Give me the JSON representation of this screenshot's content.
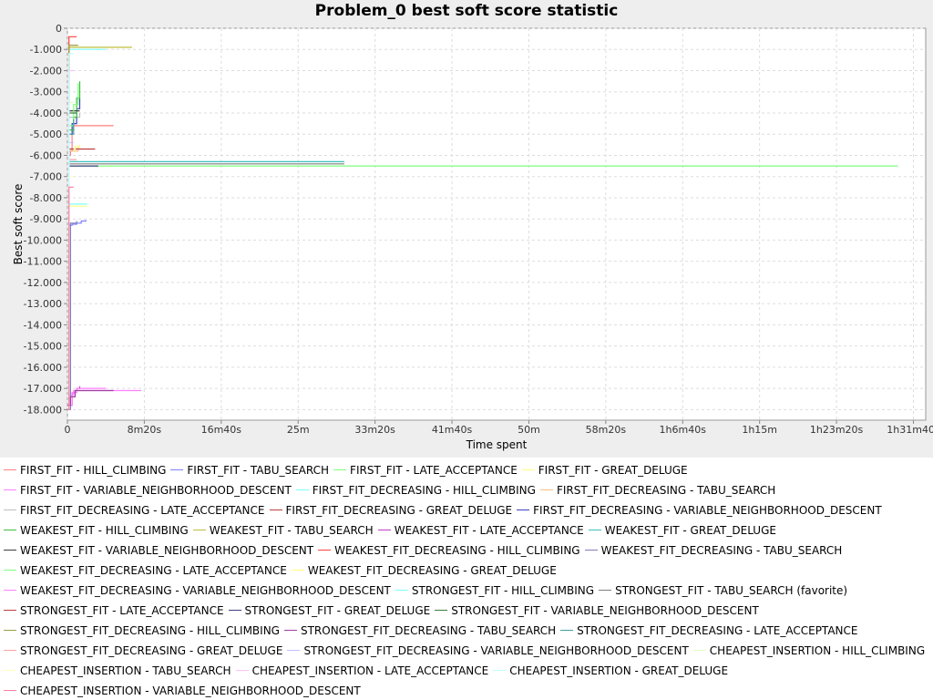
{
  "chart_data": {
    "type": "line",
    "title": "Problem_0 best soft score statistic",
    "xlabel": "Time spent",
    "ylabel": "Best soft score",
    "xlim_ms": [
      0,
      5580000
    ],
    "ylim": [
      -18500,
      0
    ],
    "grid": true,
    "legend_placement": "bottom",
    "x_ticks": [
      {
        "ms": 0,
        "label": "0"
      },
      {
        "ms": 500000,
        "label": "8m20s"
      },
      {
        "ms": 1000000,
        "label": "16m40s"
      },
      {
        "ms": 1500000,
        "label": "25m"
      },
      {
        "ms": 2000000,
        "label": "33m20s"
      },
      {
        "ms": 2500000,
        "label": "41m40s"
      },
      {
        "ms": 3000000,
        "label": "50m"
      },
      {
        "ms": 3500000,
        "label": "58m20s"
      },
      {
        "ms": 4000000,
        "label": "1h6m40s"
      },
      {
        "ms": 4500000,
        "label": "1h15m"
      },
      {
        "ms": 5000000,
        "label": "1h23m20s"
      },
      {
        "ms": 5500000,
        "label": "1h31m40s"
      }
    ],
    "y_ticks": [
      {
        "v": 0,
        "label": "0"
      },
      {
        "v": -1000,
        "label": "-1.000"
      },
      {
        "v": -2000,
        "label": "-2.000"
      },
      {
        "v": -3000,
        "label": "-3.000"
      },
      {
        "v": -4000,
        "label": "-4.000"
      },
      {
        "v": -5000,
        "label": "-5.000"
      },
      {
        "v": -6000,
        "label": "-6.000"
      },
      {
        "v": -7000,
        "label": "-7.000"
      },
      {
        "v": -8000,
        "label": "-8.000"
      },
      {
        "v": -9000,
        "label": "-9.000"
      },
      {
        "v": -10000,
        "label": "-10.000"
      },
      {
        "v": -11000,
        "label": "-11.000"
      },
      {
        "v": -12000,
        "label": "-12.000"
      },
      {
        "v": -13000,
        "label": "-13.000"
      },
      {
        "v": -14000,
        "label": "-14.000"
      },
      {
        "v": -15000,
        "label": "-15.000"
      },
      {
        "v": -16000,
        "label": "-16.000"
      },
      {
        "v": -17000,
        "label": "-17.000"
      },
      {
        "v": -18000,
        "label": "-18.000"
      }
    ],
    "series": [
      {
        "name": "FIRST_FIT - HILL_CLIMBING",
        "color": "#ff7f7f",
        "points": [
          [
            0,
            -18000
          ],
          [
            10000,
            -6000
          ],
          [
            20000,
            -5800
          ],
          [
            30000,
            -4600
          ],
          [
            300000,
            -4600
          ]
        ]
      },
      {
        "name": "FIRST_FIT - TABU_SEARCH",
        "color": "#7f7fff",
        "points": [
          [
            0,
            -18000
          ],
          [
            10000,
            -9300
          ],
          [
            30000,
            -9250
          ],
          [
            60000,
            -9200
          ],
          [
            90000,
            -9100
          ],
          [
            120000,
            -9050
          ]
        ]
      },
      {
        "name": "FIRST_FIT - LATE_ACCEPTANCE",
        "color": "#7fff7f",
        "points": [
          [
            0,
            -18000
          ],
          [
            10000,
            -6500
          ],
          [
            50000,
            -6500
          ],
          [
            5400000,
            -6500
          ]
        ]
      },
      {
        "name": "FIRST_FIT - GREAT_DELUGE",
        "color": "#ffff7f",
        "points": [
          [
            0,
            -18000
          ],
          [
            10000,
            -8400
          ],
          [
            130000,
            -8400
          ]
        ]
      },
      {
        "name": "FIRST_FIT - VARIABLE_NEIGHBORHOOD_DESCENT",
        "color": "#ff7fff",
        "points": [
          [
            0,
            -17800
          ],
          [
            20000,
            -17300
          ],
          [
            40000,
            -17100
          ],
          [
            160000,
            -17100
          ],
          [
            480000,
            -17100
          ]
        ]
      },
      {
        "name": "FIRST_FIT_DECREASING - HILL_CLIMBING",
        "color": "#7fffff",
        "points": [
          [
            0,
            -18000
          ],
          [
            10000,
            -1000
          ],
          [
            250000,
            -1000
          ]
        ]
      },
      {
        "name": "FIRST_FIT_DECREASING - TABU_SEARCH",
        "color": "#ffbf7f",
        "points": [
          [
            0,
            -18000
          ],
          [
            10000,
            -5800
          ],
          [
            60000,
            -5800
          ],
          [
            70000,
            -5600
          ]
        ]
      },
      {
        "name": "FIRST_FIT_DECREASING - LATE_ACCEPTANCE",
        "color": "#bfbfbf",
        "points": [
          [
            0,
            -18000
          ],
          [
            10000,
            -4200
          ],
          [
            80000,
            -4000
          ]
        ]
      },
      {
        "name": "FIRST_FIT_DECREASING - GREAT_DELUGE",
        "color": "#bf3f3f",
        "points": [
          [
            0,
            -18000
          ],
          [
            10000,
            -5700
          ],
          [
            180000,
            -5700
          ]
        ]
      },
      {
        "name": "FIRST_FIT_DECREASING - VARIABLE_NEIGHBORHOOD_DESCENT",
        "color": "#3f3fbf",
        "points": [
          [
            0,
            -18000
          ],
          [
            10000,
            -5000
          ],
          [
            30000,
            -4500
          ],
          [
            60000,
            -3800
          ],
          [
            80000,
            -3300
          ]
        ]
      },
      {
        "name": "WEAKEST_FIT - HILL_CLIMBING",
        "color": "#3fbf3f",
        "points": [
          [
            0,
            -18000
          ],
          [
            10000,
            -4800
          ],
          [
            40000,
            -4200
          ],
          [
            60000,
            -3300
          ],
          [
            80000,
            -2500
          ]
        ]
      },
      {
        "name": "WEAKEST_FIT - TABU_SEARCH",
        "color": "#bfbf3f",
        "points": [
          [
            0,
            -18000
          ],
          [
            10000,
            -900
          ],
          [
            420000,
            -900
          ]
        ]
      },
      {
        "name": "WEAKEST_FIT - LATE_ACCEPTANCE",
        "color": "#bf3fbf",
        "points": [
          [
            0,
            -17800
          ],
          [
            30000,
            -17200
          ],
          [
            60000,
            -17000
          ],
          [
            80000,
            -16900
          ]
        ]
      },
      {
        "name": "WEAKEST_FIT - GREAT_DELUGE",
        "color": "#3fbfbf",
        "points": [
          [
            0,
            -18000
          ],
          [
            10000,
            -6300
          ],
          [
            1800000,
            -6300
          ]
        ]
      },
      {
        "name": "WEAKEST_FIT - VARIABLE_NEIGHBORHOOD_DESCENT",
        "color": "#3f3f3f",
        "points": [
          [
            0,
            -18000
          ],
          [
            10000,
            -3900
          ],
          [
            80000,
            -3900
          ]
        ]
      },
      {
        "name": "WEAKEST_FIT_DECREASING - HILL_CLIMBING",
        "color": "#ff3f3f",
        "points": [
          [
            0,
            -18000
          ],
          [
            10000,
            -400
          ],
          [
            60000,
            -400
          ]
        ]
      },
      {
        "name": "WEAKEST_FIT_DECREASING - TABU_SEARCH",
        "color": "#7f7fbf",
        "points": [
          [
            0,
            -18000
          ],
          [
            20000,
            -9200
          ],
          [
            60000,
            -9100
          ]
        ]
      },
      {
        "name": "WEAKEST_FIT_DECREASING - LATE_ACCEPTANCE",
        "color": "#7fff7f",
        "points": [
          [
            0,
            -18000
          ],
          [
            10000,
            -4600
          ],
          [
            40000,
            -3600
          ],
          [
            70000,
            -2600
          ]
        ]
      },
      {
        "name": "WEAKEST_FIT_DECREASING - GREAT_DELUGE",
        "color": "#ffff7f",
        "points": [
          [
            0,
            -18000
          ],
          [
            10000,
            -5700
          ],
          [
            50000,
            -5600
          ],
          [
            80000,
            -5500
          ]
        ]
      },
      {
        "name": "WEAKEST_FIT_DECREASING - VARIABLE_NEIGHBORHOOD_DESCENT",
        "color": "#ff7fff",
        "points": [
          [
            0,
            -17800
          ],
          [
            30000,
            -17200
          ],
          [
            60000,
            -17000
          ],
          [
            250000,
            -17000
          ]
        ]
      },
      {
        "name": "STRONGEST_FIT - HILL_CLIMBING",
        "color": "#7fffff",
        "points": [
          [
            0,
            -18000
          ],
          [
            10000,
            -8300
          ],
          [
            130000,
            -8300
          ]
        ]
      },
      {
        "name": "STRONGEST_FIT - TABU_SEARCH (favorite)",
        "color": "#7f7f7f",
        "points": [
          [
            0,
            -18000
          ],
          [
            10000,
            -6400
          ],
          [
            1800000,
            -6400
          ]
        ]
      },
      {
        "name": "STRONGEST_FIT - LATE_ACCEPTANCE",
        "color": "#bf3f3f",
        "points": [
          [
            0,
            -18000
          ],
          [
            10000,
            -5700
          ],
          [
            40000,
            -5700
          ]
        ]
      },
      {
        "name": "STRONGEST_FIT - GREAT_DELUGE",
        "color": "#3f3f7f",
        "points": [
          [
            0,
            -18000
          ],
          [
            10000,
            -6500
          ],
          [
            200000,
            -6500
          ]
        ]
      },
      {
        "name": "STRONGEST_FIT - VARIABLE_NEIGHBORHOOD_DESCENT",
        "color": "#3f7f3f",
        "points": [
          [
            0,
            -18000
          ],
          [
            10000,
            -4000
          ],
          [
            60000,
            -4000
          ]
        ]
      },
      {
        "name": "STRONGEST_FIT_DECREASING - HILL_CLIMBING",
        "color": "#9f9f3f",
        "points": [
          [
            0,
            -18000
          ],
          [
            10000,
            -800
          ],
          [
            70000,
            -800
          ]
        ]
      },
      {
        "name": "STRONGEST_FIT_DECREASING - TABU_SEARCH",
        "color": "#9f3f9f",
        "points": [
          [
            0,
            -17800
          ],
          [
            20000,
            -17400
          ],
          [
            50000,
            -17100
          ],
          [
            300000,
            -17100
          ]
        ]
      },
      {
        "name": "STRONGEST_FIT_DECREASING - LATE_ACCEPTANCE",
        "color": "#3f9f9f",
        "points": [
          [
            0,
            -18000
          ],
          [
            10000,
            -5000
          ],
          [
            40000,
            -4300
          ]
        ]
      },
      {
        "name": "STRONGEST_FIT_DECREASING - GREAT_DELUGE",
        "color": "#ff9f9f",
        "points": [
          [
            0,
            -18000
          ],
          [
            10000,
            -6200
          ],
          [
            60000,
            -6200
          ]
        ]
      },
      {
        "name": "STRONGEST_FIT_DECREASING - VARIABLE_NEIGHBORHOOD_DESCENT",
        "color": "#bfbfff",
        "points": [
          [
            0,
            -18000
          ],
          [
            10000,
            -5400
          ],
          [
            40000,
            -5400
          ]
        ]
      },
      {
        "name": "CHEAPEST_INSERTION - HILL_CLIMBING",
        "color": "#dfffbf",
        "points": [
          [
            0,
            -18000
          ],
          [
            10000,
            -3500
          ],
          [
            40000,
            -3500
          ]
        ]
      },
      {
        "name": "CHEAPEST_INSERTION - TABU_SEARCH",
        "color": "#ffffbf",
        "points": [
          [
            0,
            -18000
          ],
          [
            10000,
            -7000
          ],
          [
            40000,
            -7000
          ]
        ]
      },
      {
        "name": "CHEAPEST_INSERTION - LATE_ACCEPTANCE",
        "color": "#ffbfff",
        "points": [
          [
            0,
            -18000
          ],
          [
            10000,
            -2000
          ],
          [
            40000,
            -2000
          ]
        ]
      },
      {
        "name": "CHEAPEST_INSERTION - GREAT_DELUGE",
        "color": "#bfffff",
        "points": [
          [
            0,
            -18000
          ],
          [
            10000,
            -1200
          ],
          [
            40000,
            -1200
          ]
        ]
      },
      {
        "name": "CHEAPEST_INSERTION - VARIABLE_NEIGHBORHOOD_DESCENT",
        "color": "#ff7f9f",
        "points": [
          [
            0,
            -18000
          ],
          [
            10000,
            -7500
          ],
          [
            40000,
            -7500
          ]
        ]
      }
    ],
    "legend_rows": [
      [
        0,
        1,
        2,
        3
      ],
      [
        4,
        5,
        6
      ],
      [
        7,
        8,
        9
      ],
      [
        10,
        11,
        12,
        13
      ],
      [
        14,
        15,
        16
      ],
      [
        17,
        18
      ],
      [
        19,
        20,
        21
      ],
      [
        22,
        23,
        24
      ],
      [
        25,
        26,
        27
      ],
      [
        28,
        29,
        30
      ],
      [
        31,
        32,
        33
      ],
      [
        34
      ]
    ]
  }
}
